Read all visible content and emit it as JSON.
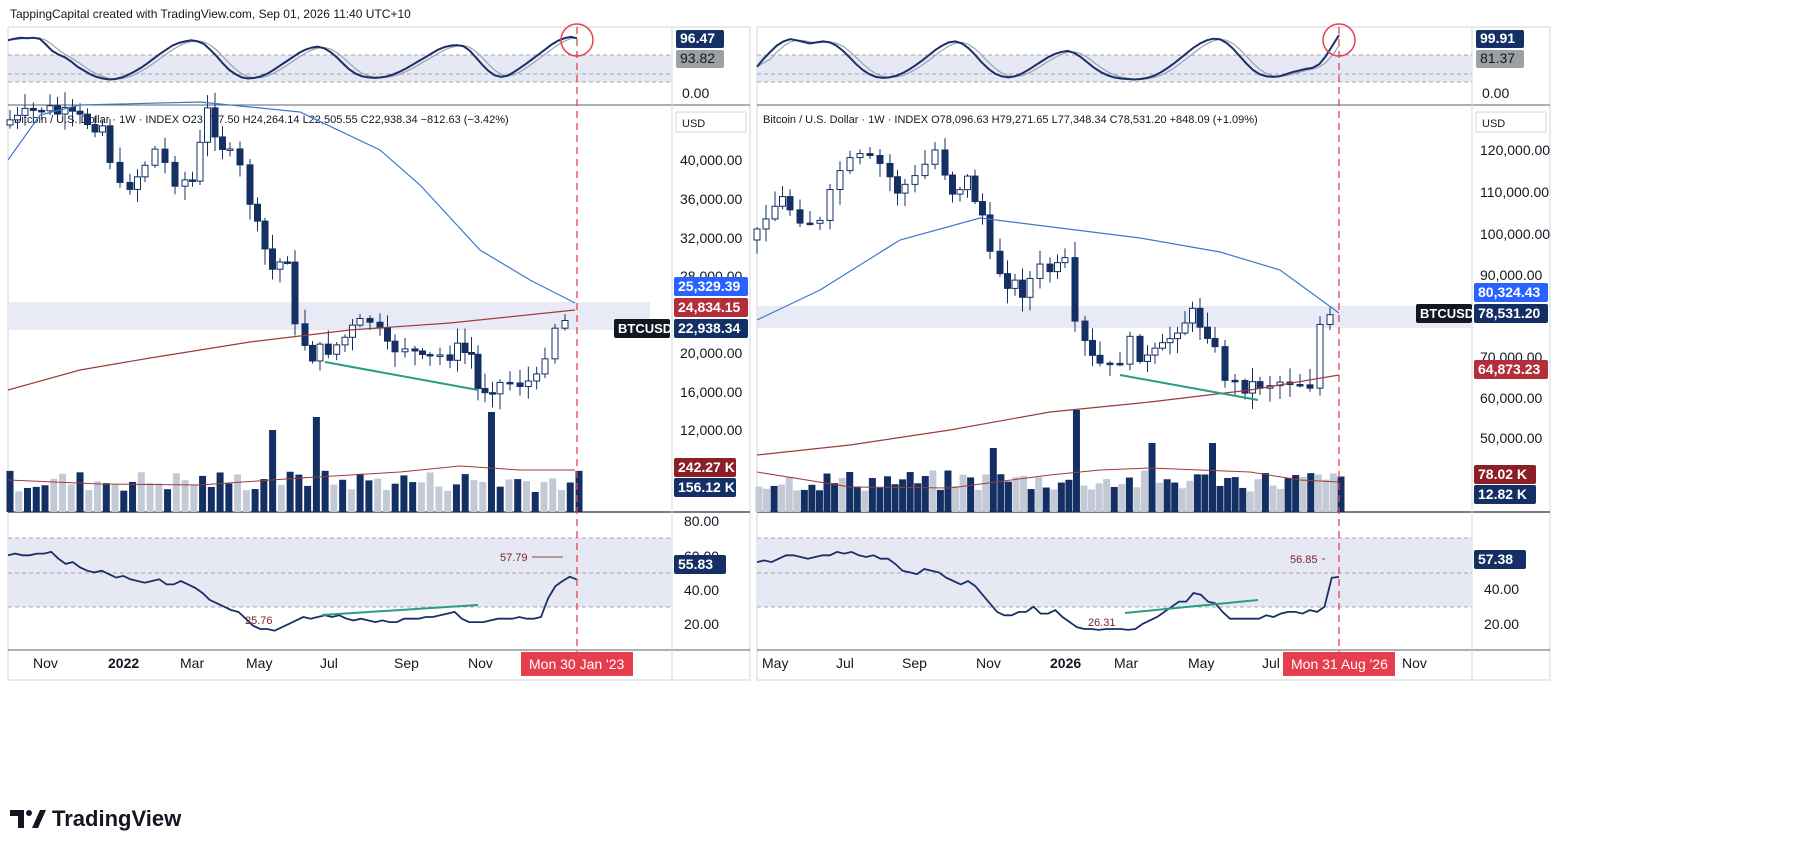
{
  "header": {
    "credit": "TappingCapital created with TradingView.com, Sep 01, 2026 11:40 UTC+10"
  },
  "brand": {
    "name": "TradingView",
    "logo_icon": "tradingview-logo-icon"
  },
  "colors": {
    "navy": "#132f63",
    "up": "#ffffff",
    "stoch_k": "#1a2f66",
    "stoch_d": "#9aa3ad",
    "ma_blue": "#3d78c9",
    "ma_red": "#9e3b3b",
    "green": "#2a9d7f",
    "red_dash": "#e0454f",
    "band": "#e6e9f4",
    "label_red": "#e73e4d",
    "vol_light": "#c4c9d6"
  },
  "chart_data": [
    {
      "type": "candlestick",
      "symbol_label": "BTCUSD",
      "legend": {
        "name": "Bitcoin / U.S. Dollar · 1W · INDEX",
        "o": "O23,747.50",
        "h": "H24,264.14",
        "l": "L22,505.55",
        "c": "C22,938.34",
        "chg": "−812.63 (−3.42%)"
      },
      "currency": "USD",
      "x_ticks": [
        "Nov",
        "2022",
        "Mar",
        "May",
        "Jul",
        "Sep",
        "Nov"
      ],
      "cursor_label": "Mon 30 Jan '23",
      "price_ticks": [
        "40,000.00",
        "36,000.00",
        "32,000.00",
        "28,000.00",
        "20,000.00",
        "16,000.00",
        "12,000.00"
      ],
      "price_labels": {
        "ma_blue": "25,329.39",
        "ma_red": "24,834.15",
        "last": "22,938.34"
      },
      "volume_labels": {
        "ma": "242.27 K",
        "vol": "156.12 K"
      },
      "stoch": {
        "k_label": "96.47",
        "d_label": "93.82",
        "zero": "0.00",
        "k": [
          90,
          93,
          95,
          94,
          95,
          93,
          82,
          70,
          63,
          58,
          50,
          40,
          33,
          26,
          21,
          18,
          16,
          17,
          20,
          25,
          31,
          38,
          46,
          55,
          64,
          72,
          80,
          85,
          88,
          90,
          88,
          83,
          72,
          60,
          46,
          34,
          26,
          20,
          18,
          19,
          22,
          27,
          34,
          42,
          50,
          58,
          66,
          72,
          76,
          78,
          75,
          68,
          58,
          46,
          35,
          27,
          22,
          20,
          19,
          20,
          22,
          26,
          31,
          37,
          44,
          51,
          58,
          65,
          72,
          77,
          80,
          81,
          79,
          71,
          58,
          44,
          32,
          24,
          21,
          23,
          30,
          38,
          46,
          55,
          64,
          73,
          82,
          89,
          94,
          96.5,
          94
        ]
      },
      "rsi": {
        "ticks": [
          "80.00",
          "60.00",
          "40.00",
          "20.00"
        ],
        "value": "55.83",
        "peak": "57.79",
        "low": "25.76",
        "series": [
          70,
          71,
          70,
          70,
          71,
          71,
          72,
          68,
          65,
          66,
          63,
          61,
          60,
          61,
          59,
          57,
          58,
          56,
          55,
          54,
          55,
          56,
          53,
          53,
          55,
          53,
          51,
          48,
          44,
          42,
          40,
          38,
          37,
          33,
          29,
          27,
          27,
          26,
          28,
          30,
          32,
          34,
          33,
          34,
          35,
          34,
          35,
          33,
          32,
          33,
          32,
          31,
          32,
          31,
          31,
          33,
          33,
          33,
          34,
          34,
          35,
          36,
          37,
          33,
          31,
          31,
          31,
          32,
          33,
          33,
          33,
          34,
          33,
          33,
          34,
          45,
          52,
          55,
          57.5,
          55.8
        ]
      }
    },
    {
      "type": "candlestick",
      "symbol_label": "BTCUSD",
      "legend": {
        "name": "Bitcoin / U.S. Dollar · 1W · INDEX",
        "o": "O78,096.63",
        "h": "H79,271.65",
        "l": "L77,348.34",
        "c": "C78,531.20",
        "chg": "+848.09 (+1.09%)"
      },
      "currency": "USD",
      "x_ticks": [
        "May",
        "Jul",
        "Sep",
        "Nov",
        "2026",
        "Mar",
        "May",
        "Jul",
        "Nov"
      ],
      "cursor_label": "Mon 31 Aug '26",
      "price_ticks": [
        "120,000.00",
        "110,000.00",
        "100,000.00",
        "90,000.00",
        "70,000.00",
        "60,000.00",
        "50,000.00"
      ],
      "price_labels": {
        "ma_blue": "80,324.43",
        "ma_red": "64,873.23",
        "last": "78,531.20"
      },
      "volume_labels": {
        "ma": "78.02 K",
        "vol": "12.82 K"
      },
      "stoch": {
        "k_label": "99.91",
        "d_label": "81.37",
        "zero": "0.00",
        "k": [
          40,
          55,
          68,
          80,
          88,
          92,
          90,
          87,
          84,
          86,
          88,
          86,
          80,
          70,
          58,
          45,
          34,
          26,
          21,
          19,
          20,
          23,
          28,
          35,
          43,
          52,
          62,
          72,
          80,
          86,
          88,
          84,
          75,
          62,
          48,
          36,
          27,
          22,
          20,
          22,
          27,
          34,
          42,
          50,
          58,
          64,
          68,
          70,
          66,
          58,
          48,
          38,
          30,
          24,
          20,
          18,
          17,
          16,
          17,
          19,
          23,
          29,
          37,
          46,
          56,
          66,
          76,
          84,
          90,
          93,
          92,
          85,
          74,
          60,
          46,
          34,
          26,
          22,
          21,
          22,
          26,
          30,
          33,
          36,
          38,
          45,
          60,
          80,
          99.9
        ]
      },
      "rsi": {
        "ticks": [
          "40.00",
          "20.00"
        ],
        "value": "57.38",
        "peak": "56.85",
        "low": "26.31",
        "series": [
          66,
          67,
          66,
          68,
          70,
          70,
          69,
          68,
          69,
          70,
          70,
          72,
          71,
          72,
          70,
          69,
          70,
          68,
          68,
          65,
          61,
          60,
          59,
          62,
          61,
          60,
          57,
          55,
          53,
          55,
          52,
          47,
          42,
          37,
          35,
          35,
          37,
          37,
          40,
          36,
          36,
          38,
          34,
          31,
          28,
          27,
          27,
          26.5,
          27,
          27,
          27,
          26.5,
          27,
          30,
          32,
          34,
          37,
          40,
          43,
          43,
          48,
          47,
          43,
          42,
          37,
          33,
          33,
          33,
          33,
          33,
          35,
          34,
          36,
          37,
          37,
          36,
          38,
          37,
          40,
          56.85,
          57.4
        ]
      }
    }
  ]
}
